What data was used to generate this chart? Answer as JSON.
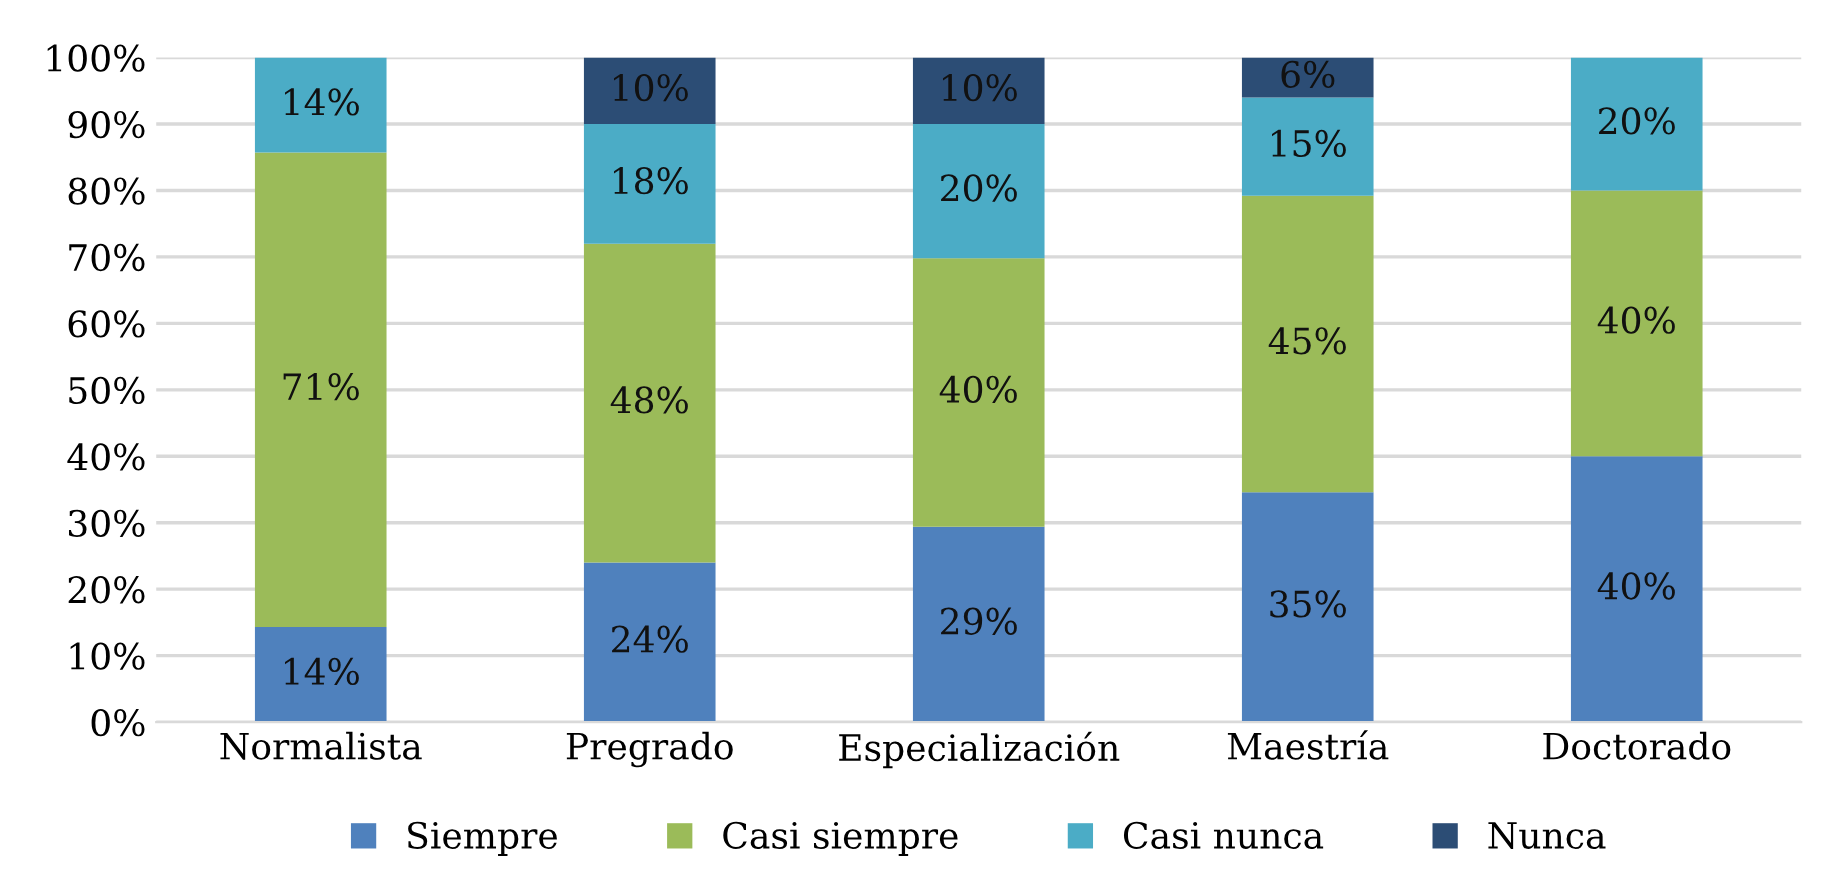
{
  "chart_data": {
    "type": "bar",
    "stacked": true,
    "categories": [
      "Normalista",
      "Pregrado",
      "Especialización",
      "Maestría",
      "Doctorado"
    ],
    "series": [
      {
        "name": "Siempre",
        "color": "#4f81bd",
        "values": [
          14.3,
          24,
          29.4,
          34.6,
          40
        ],
        "value_labels": [
          "14%",
          "24%",
          "29%",
          "35%",
          "40%"
        ]
      },
      {
        "name": "Casi siempre",
        "color": "#9bbb59",
        "values": [
          71.4,
          48,
          40.4,
          44.6,
          40
        ],
        "value_labels": [
          "71%",
          "48%",
          "40%",
          "45%",
          "40%"
        ]
      },
      {
        "name": "Casi nunca",
        "color": "#4bacc6",
        "values": [
          14.3,
          18,
          20.2,
          14.8,
          20
        ],
        "value_labels": [
          "14%",
          "18%",
          "20%",
          "15%",
          "20%"
        ]
      },
      {
        "name": "Nunca",
        "color": "#2c4d75",
        "values": [
          null,
          10,
          10,
          6,
          null
        ],
        "value_labels": [
          null,
          "10%",
          "10%",
          "6%",
          null
        ]
      }
    ],
    "ylim": [
      0,
      100
    ],
    "yticks": [
      {
        "value": 0,
        "label": "0%"
      },
      {
        "value": 10,
        "label": "10%"
      },
      {
        "value": 20,
        "label": "20%"
      },
      {
        "value": 30,
        "label": "30%"
      },
      {
        "value": 40,
        "label": "40%"
      },
      {
        "value": 50,
        "label": "50%"
      },
      {
        "value": 60,
        "label": "60%"
      },
      {
        "value": 70,
        "label": "70%"
      },
      {
        "value": 80,
        "label": "80%"
      },
      {
        "value": 90,
        "label": "90%"
      },
      {
        "value": 100,
        "label": "100%"
      }
    ],
    "grid": "y",
    "legend": "bottom"
  }
}
